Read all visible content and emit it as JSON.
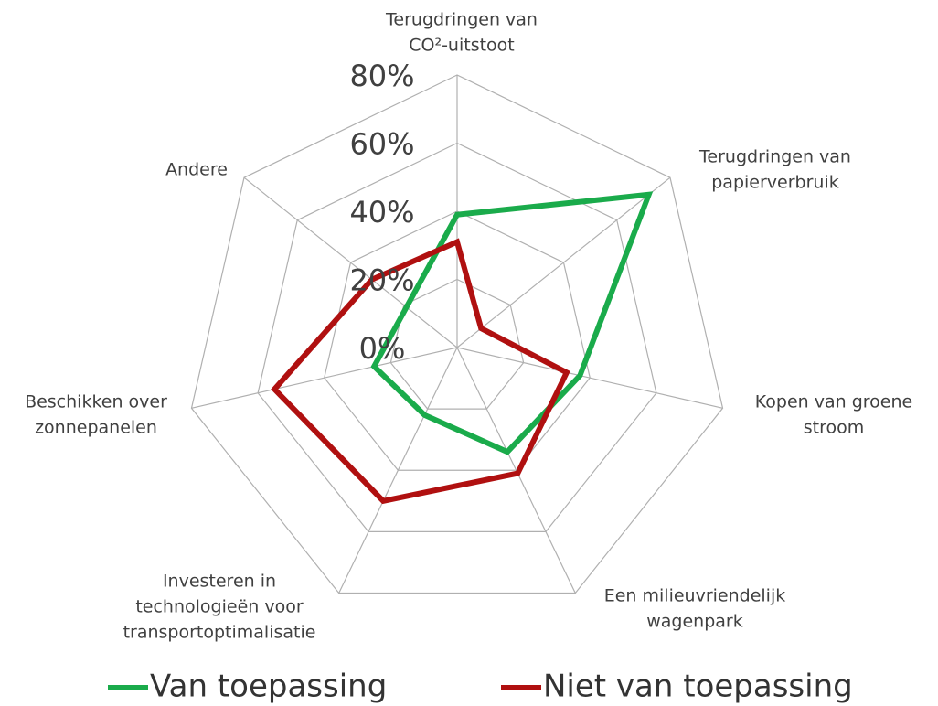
{
  "chart_data": {
    "type": "radar",
    "categories": [
      [
        "Terugdringen van",
        "CO²-uitstoot"
      ],
      [
        "Terugdringen van",
        "papierverbruik"
      ],
      [
        "Kopen van groene",
        "stroom"
      ],
      [
        "Een milieuvriendelijk",
        "wagenpark"
      ],
      [
        "Investeren in",
        "technologieën voor",
        "transportoptimalisatie"
      ],
      [
        "Beschikken over",
        "zonnepanelen"
      ],
      [
        "Andere"
      ]
    ],
    "series": [
      {
        "name": "Van toepassing",
        "color": "#1aab4b",
        "values": [
          39,
          72,
          37,
          34,
          22,
          25,
          19
        ]
      },
      {
        "name": "Niet van toepassing",
        "color": "#b01010",
        "values": [
          31,
          9,
          33,
          41,
          50,
          55,
          32
        ]
      }
    ],
    "ylim": [
      0,
      80
    ],
    "yticks": [
      {
        "value": 0,
        "label": "0%"
      },
      {
        "value": 20,
        "label": "20%"
      },
      {
        "value": 40,
        "label": "40%"
      },
      {
        "value": 60,
        "label": "60%"
      },
      {
        "value": 80,
        "label": "80%"
      }
    ],
    "grid": true,
    "legend": "bottom"
  }
}
